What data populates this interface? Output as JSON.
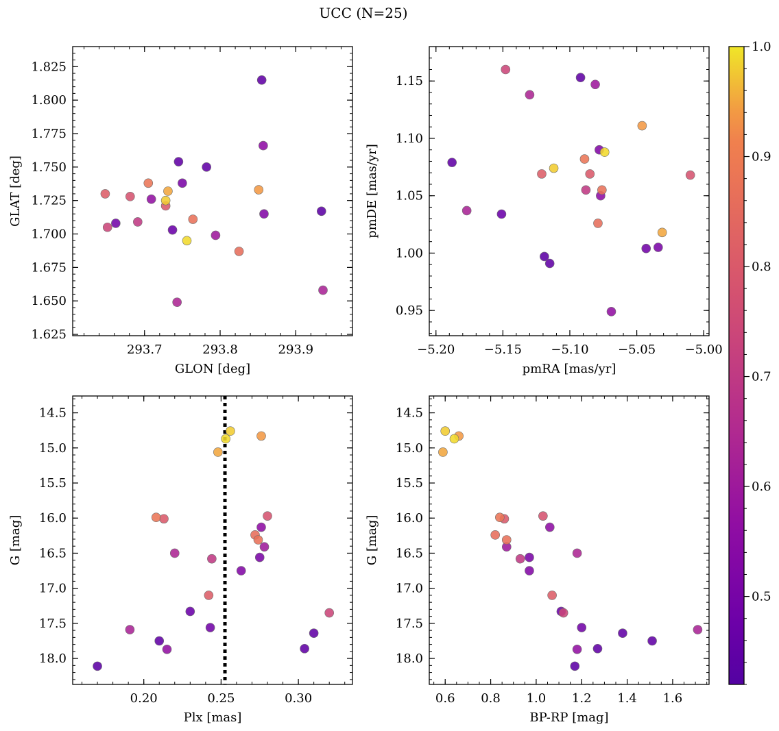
{
  "title": "UCC (N=25)",
  "colorbar": {
    "colormap": "plasma",
    "range": [
      0.42,
      1.0
    ],
    "ticks": [
      0.5,
      0.6,
      0.7,
      0.8,
      0.9,
      1.0
    ],
    "tick_labels": [
      "0.5",
      "0.6",
      "0.7",
      "0.8",
      "0.9",
      "1.0"
    ]
  },
  "stars": [
    {
      "glon": 293.855,
      "glat": 1.815,
      "pmra": -5.092,
      "pmde": 1.153,
      "plx": 0.31,
      "g": 17.64,
      "bprp": 1.38,
      "p": 0.45
    },
    {
      "glon": 293.745,
      "glat": 1.754,
      "pmra": -5.115,
      "pmde": 0.991,
      "plx": 0.304,
      "g": 17.86,
      "bprp": 1.27,
      "p": 0.45
    },
    {
      "glon": 293.782,
      "glat": 1.75,
      "pmra": -5.188,
      "pmde": 1.079,
      "plx": 0.21,
      "g": 17.75,
      "bprp": 1.51,
      "p": 0.45
    },
    {
      "glon": 293.934,
      "glat": 1.717,
      "pmra": -5.119,
      "pmde": 0.997,
      "plx": 0.17,
      "g": 18.11,
      "bprp": 1.17,
      "p": 0.44
    },
    {
      "glon": 293.737,
      "glat": 1.703,
      "pmra": -5.151,
      "pmde": 1.034,
      "plx": 0.23,
      "g": 17.33,
      "bprp": 1.11,
      "p": 0.47
    },
    {
      "glon": 293.662,
      "glat": 1.708,
      "pmra": -5.043,
      "pmde": 1.004,
      "plx": 0.243,
      "g": 17.56,
      "bprp": 1.2,
      "p": 0.49
    },
    {
      "glon": 293.75,
      "glat": 1.738,
      "pmra": -5.034,
      "pmde": 1.005,
      "plx": 0.275,
      "g": 16.56,
      "bprp": 0.97,
      "p": 0.51
    },
    {
      "glon": 293.858,
      "glat": 1.715,
      "pmra": -5.078,
      "pmde": 1.09,
      "plx": 0.263,
      "g": 16.75,
      "bprp": 0.97,
      "p": 0.53
    },
    {
      "glon": 293.857,
      "glat": 1.766,
      "pmra": -5.077,
      "pmde": 1.05,
      "plx": 0.276,
      "g": 16.13,
      "bprp": 1.06,
      "p": 0.56
    },
    {
      "glon": 293.709,
      "glat": 1.726,
      "pmra": -5.069,
      "pmde": 0.949,
      "plx": 0.215,
      "g": 17.87,
      "bprp": 1.18,
      "p": 0.57
    },
    {
      "glon": 293.794,
      "glat": 1.699,
      "pmra": -5.081,
      "pmde": 1.147,
      "plx": 0.278,
      "g": 16.41,
      "bprp": 0.87,
      "p": 0.6
    },
    {
      "glon": 293.936,
      "glat": 1.658,
      "pmra": -5.177,
      "pmde": 1.037,
      "plx": 0.191,
      "g": 17.59,
      "bprp": 1.71,
      "p": 0.63
    },
    {
      "glon": 293.743,
      "glat": 1.649,
      "pmra": -5.13,
      "pmde": 1.138,
      "plx": 0.22,
      "g": 16.5,
      "bprp": 1.18,
      "p": 0.64
    },
    {
      "glon": 293.691,
      "glat": 1.709,
      "pmra": -5.088,
      "pmde": 1.055,
      "plx": 0.244,
      "g": 16.58,
      "bprp": 0.93,
      "p": 0.7
    },
    {
      "glon": 293.651,
      "glat": 1.705,
      "pmra": -5.148,
      "pmde": 1.16,
      "plx": 0.32,
      "g": 17.35,
      "bprp": 1.12,
      "p": 0.74
    },
    {
      "glon": 293.681,
      "glat": 1.728,
      "pmra": -5.01,
      "pmde": 1.068,
      "plx": 0.28,
      "g": 15.97,
      "bprp": 1.03,
      "p": 0.78
    },
    {
      "glon": 293.728,
      "glat": 1.721,
      "pmra": -5.085,
      "pmde": 1.069,
      "plx": 0.213,
      "g": 16.01,
      "bprp": 0.86,
      "p": 0.8
    },
    {
      "glon": 293.648,
      "glat": 1.73,
      "pmra": -5.121,
      "pmde": 1.069,
      "plx": 0.242,
      "g": 17.1,
      "bprp": 1.07,
      "p": 0.81
    },
    {
      "glon": 293.825,
      "glat": 1.687,
      "pmra": -5.079,
      "pmde": 1.026,
      "plx": 0.272,
      "g": 16.24,
      "bprp": 0.82,
      "p": 0.86
    },
    {
      "glon": 293.764,
      "glat": 1.711,
      "pmra": -5.076,
      "pmde": 1.055,
      "plx": 0.274,
      "g": 16.31,
      "bprp": 0.87,
      "p": 0.87
    },
    {
      "glon": 293.705,
      "glat": 1.738,
      "pmra": -5.089,
      "pmde": 1.082,
      "plx": 0.208,
      "g": 15.99,
      "bprp": 0.84,
      "p": 0.88
    },
    {
      "glon": 293.851,
      "glat": 1.733,
      "pmra": -5.046,
      "pmde": 1.111,
      "plx": 0.276,
      "g": 14.83,
      "bprp": 0.66,
      "p": 0.94
    },
    {
      "glon": 293.731,
      "glat": 1.732,
      "pmra": -5.031,
      "pmde": 1.018,
      "plx": 0.248,
      "g": 15.06,
      "bprp": 0.59,
      "p": 0.95
    },
    {
      "glon": 293.728,
      "glat": 1.725,
      "pmra": -5.112,
      "pmde": 1.074,
      "plx": 0.256,
      "g": 14.76,
      "bprp": 0.6,
      "p": 0.98
    },
    {
      "glon": 293.756,
      "glat": 1.695,
      "pmra": -5.074,
      "pmde": 1.088,
      "plx": 0.253,
      "g": 14.87,
      "bprp": 0.64,
      "p": 0.99
    }
  ],
  "chart_data": [
    {
      "type": "scatter",
      "xlabel": "GLON [deg]",
      "ylabel": "GLAT [deg]",
      "x_field": "glon",
      "y_field": "glat",
      "xlim": [
        293.605,
        293.975
      ],
      "ylim": [
        1.624,
        1.84
      ],
      "xticks": [
        293.7,
        293.8,
        293.9
      ],
      "xtick_labels": [
        "293.7",
        "293.8",
        "293.9"
      ],
      "yticks": [
        1.625,
        1.65,
        1.675,
        1.7,
        1.725,
        1.75,
        1.775,
        1.8,
        1.825
      ],
      "ytick_labels": [
        "1.625",
        "1.650",
        "1.675",
        "1.700",
        "1.725",
        "1.750",
        "1.775",
        "1.800",
        "1.825"
      ],
      "x_minor": 0.02,
      "y_minor": 0.005,
      "invert_y": false
    },
    {
      "type": "scatter",
      "xlabel": "pmRA [mas/yr]",
      "ylabel": "pmDE [mas/yr]",
      "x_field": "pmra",
      "y_field": "pmde",
      "xlim": [
        -5.205,
        -4.996
      ],
      "ylim": [
        0.928,
        1.18
      ],
      "xticks": [
        -5.2,
        -5.15,
        -5.1,
        -5.05,
        -5.0
      ],
      "xtick_labels": [
        "−5.20",
        "−5.15",
        "−5.10",
        "−5.05",
        "−5.00"
      ],
      "yticks": [
        0.95,
        1.0,
        1.05,
        1.1,
        1.15
      ],
      "ytick_labels": [
        "0.95",
        "1.00",
        "1.05",
        "1.10",
        "1.15"
      ],
      "x_minor": 0.01,
      "y_minor": 0.01,
      "invert_y": false
    },
    {
      "type": "scatter",
      "xlabel": "Plx [mas]",
      "ylabel": "G [mag]",
      "x_field": "plx",
      "y_field": "g",
      "xlim": [
        0.154,
        0.335
      ],
      "ylim": [
        14.26,
        18.37
      ],
      "xticks": [
        0.2,
        0.25,
        0.3
      ],
      "xtick_labels": [
        "0.20",
        "0.25",
        "0.30"
      ],
      "yticks": [
        14.5,
        15.0,
        15.5,
        16.0,
        16.5,
        17.0,
        17.5,
        18.0
      ],
      "ytick_labels": [
        "14.5",
        "15.0",
        "15.5",
        "16.0",
        "16.5",
        "17.0",
        "17.5",
        "18.0"
      ],
      "x_minor": 0.01,
      "y_minor": 0.1,
      "invert_y": true,
      "vline": 0.2525
    },
    {
      "type": "scatter",
      "xlabel": "BP-RP [mag]",
      "ylabel": "G [mag]",
      "x_field": "bprp",
      "y_field": "g",
      "xlim": [
        0.53,
        1.76
      ],
      "ylim": [
        14.26,
        18.37
      ],
      "xticks": [
        0.6,
        0.8,
        1.0,
        1.2,
        1.4,
        1.6
      ],
      "xtick_labels": [
        "0.6",
        "0.8",
        "1.0",
        "1.2",
        "1.4",
        "1.6"
      ],
      "yticks": [
        14.5,
        15.0,
        15.5,
        16.0,
        16.5,
        17.0,
        17.5,
        18.0
      ],
      "ytick_labels": [
        "14.5",
        "15.0",
        "15.5",
        "16.0",
        "16.5",
        "17.0",
        "17.5",
        "18.0"
      ],
      "x_minor": 0.05,
      "y_minor": 0.1,
      "invert_y": true
    }
  ]
}
